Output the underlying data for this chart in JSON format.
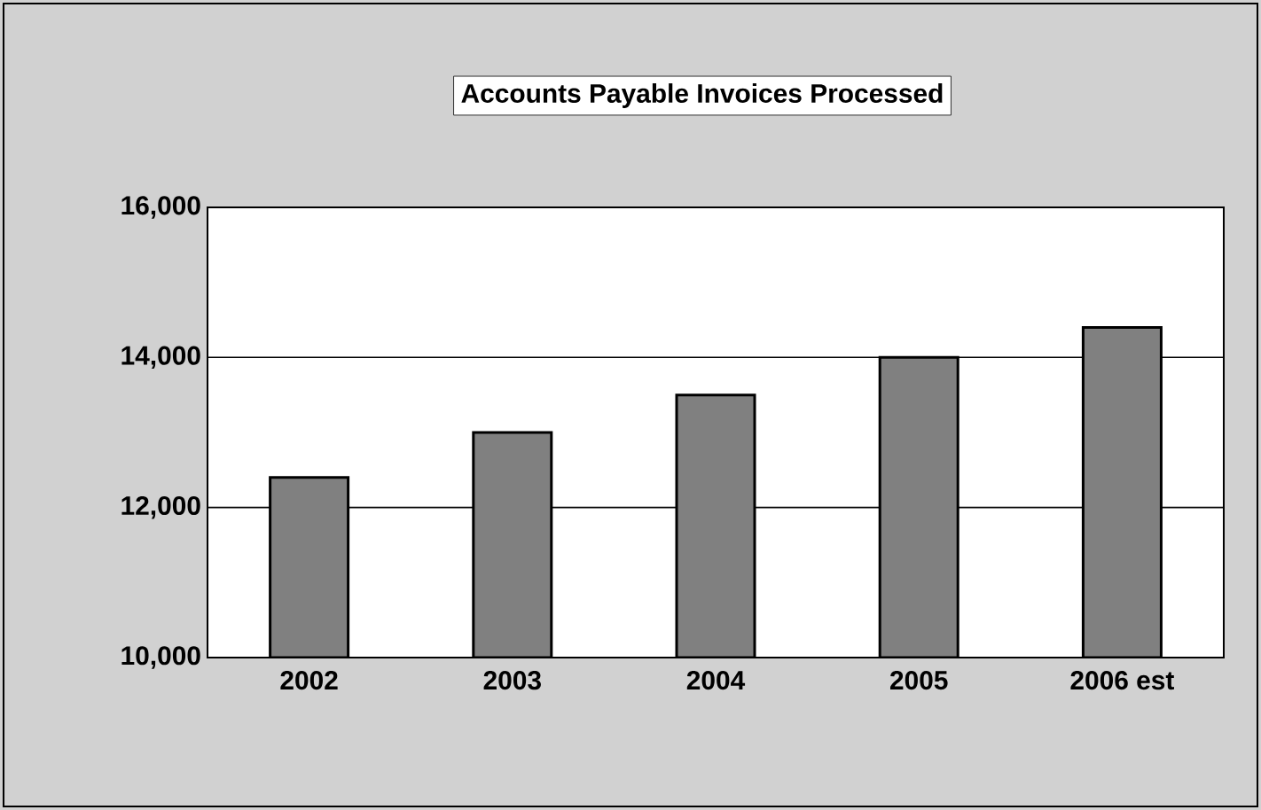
{
  "chart_data": {
    "type": "bar",
    "title": "Accounts Payable Invoices Processed",
    "categories": [
      "2002",
      "2003",
      "2004",
      "2005",
      "2006 est"
    ],
    "values": [
      12400,
      13000,
      13500,
      14000,
      14400
    ],
    "color": "#808080",
    "ylim": [
      10000,
      16000
    ],
    "yticks": [
      {
        "value": 10000,
        "label": "10,000"
      },
      {
        "value": 12000,
        "label": "12,000"
      },
      {
        "value": 14000,
        "label": "14,000"
      },
      {
        "value": 16000,
        "label": "16,000"
      }
    ],
    "grid": "y"
  }
}
